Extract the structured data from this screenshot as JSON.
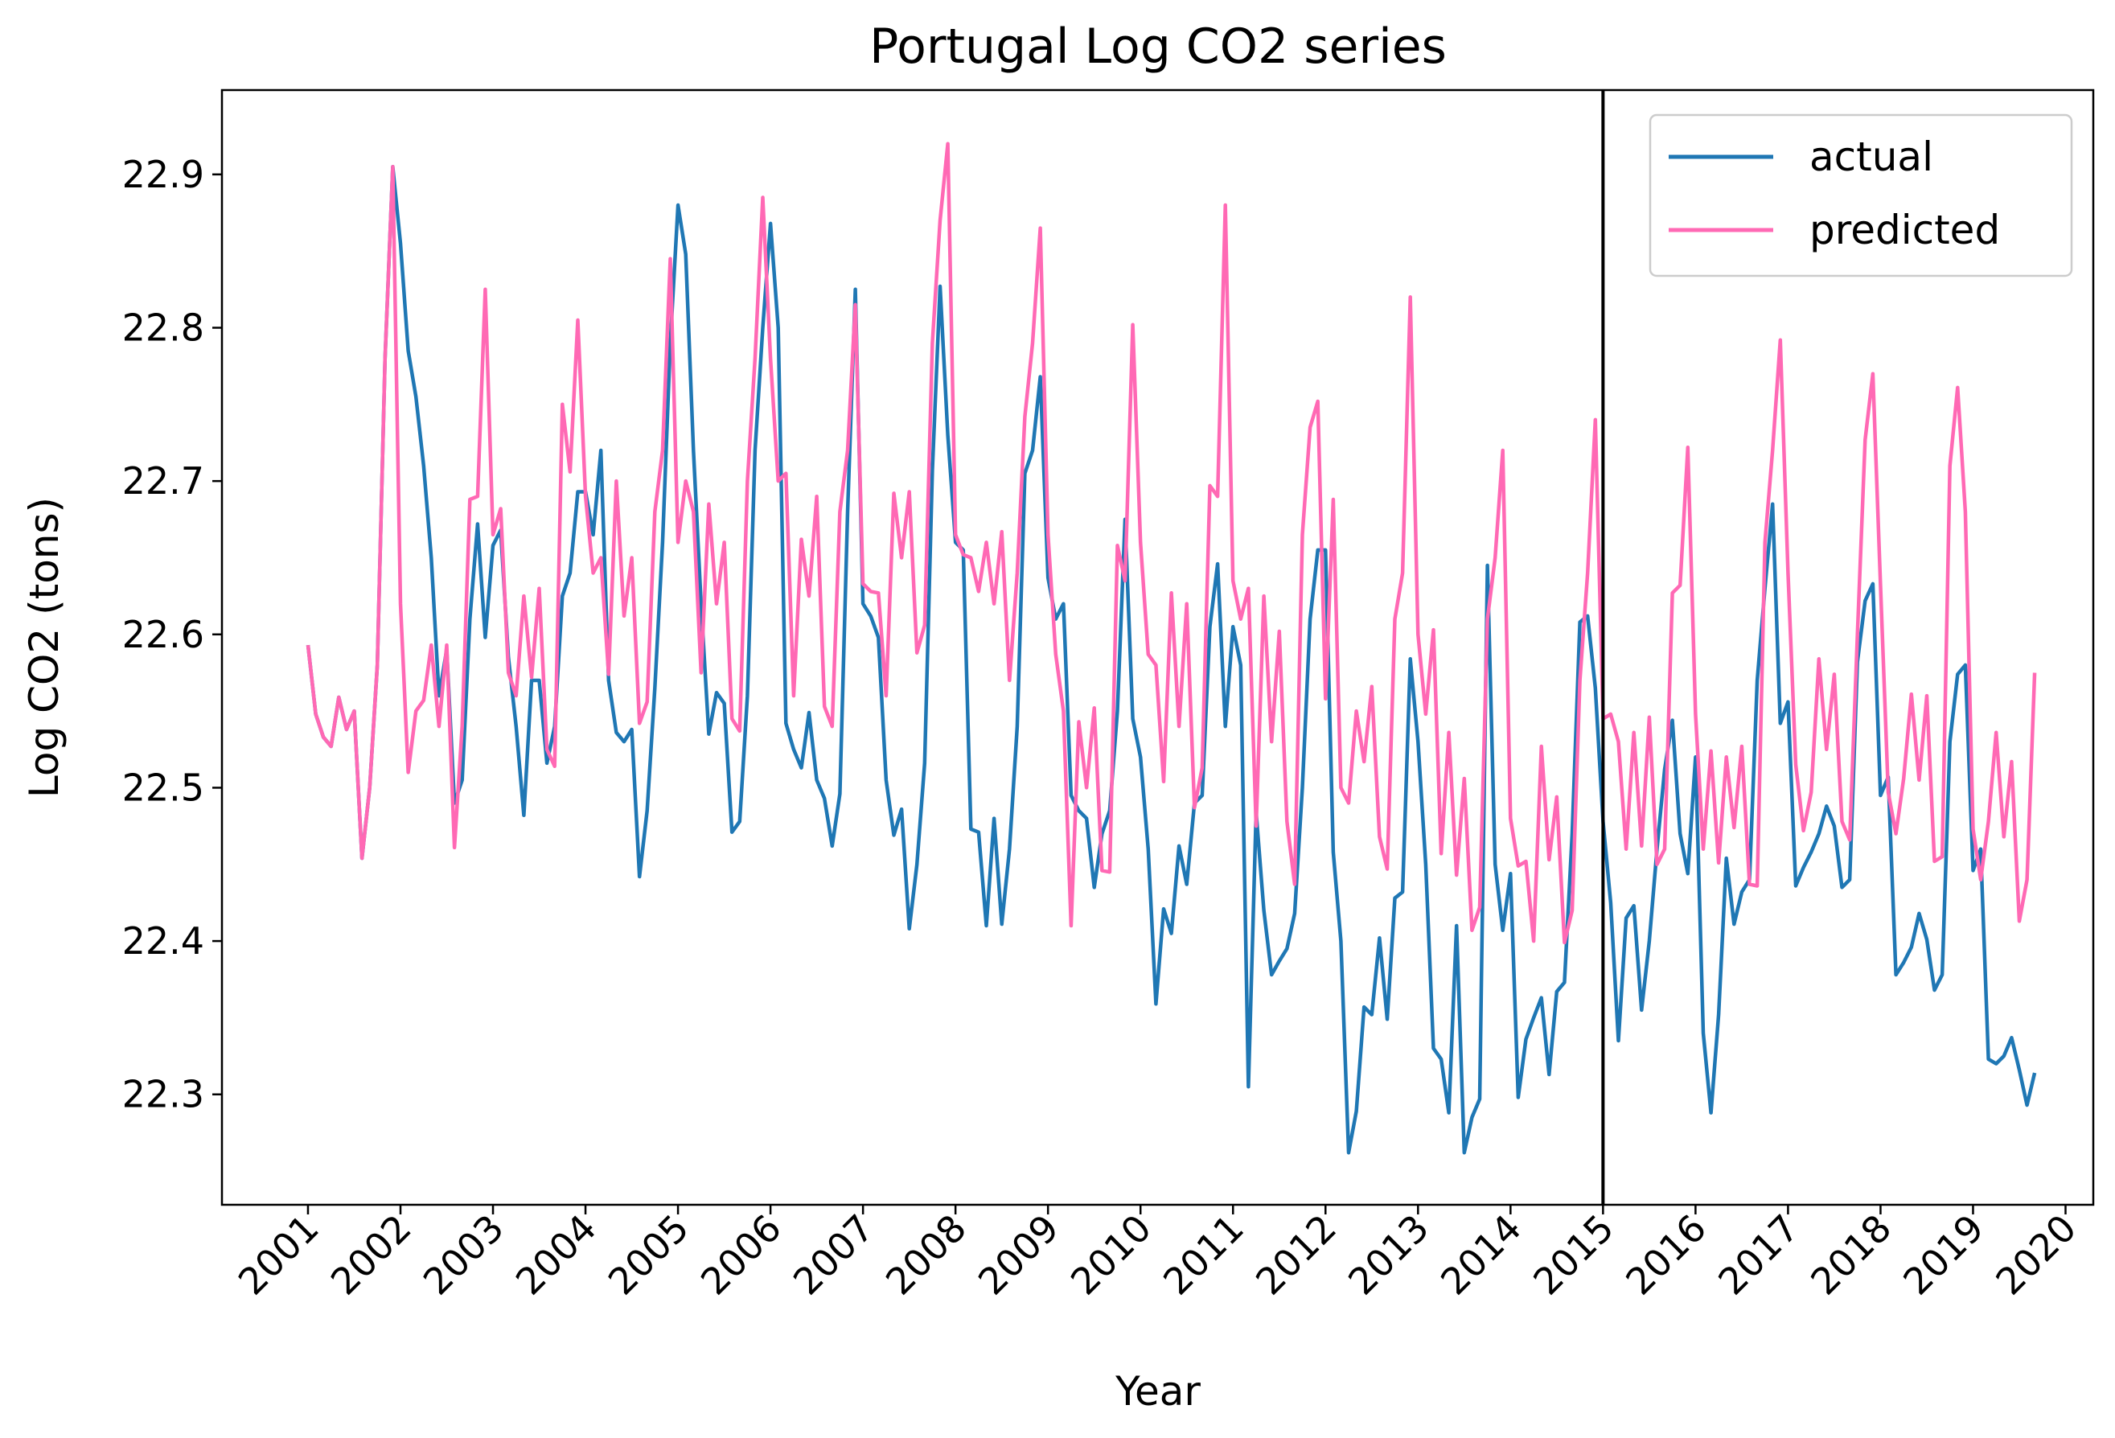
{
  "chart_data": {
    "type": "line",
    "title": "Portugal Log CO2 series",
    "xlabel": "Year",
    "ylabel": "Log CO2 (tons)",
    "xlim": [
      2000.07,
      2020.3
    ],
    "ylim": [
      22.228,
      22.955
    ],
    "x_ticks": [
      "2001",
      "2002",
      "2003",
      "2004",
      "2005",
      "2006",
      "2007",
      "2008",
      "2009",
      "2010",
      "2011",
      "2012",
      "2013",
      "2014",
      "2015",
      "2016",
      "2017",
      "2018",
      "2019",
      "2020"
    ],
    "y_ticks": [
      "22.3",
      "22.4",
      "22.5",
      "22.6",
      "22.7",
      "22.8",
      "22.9"
    ],
    "grid": false,
    "legend_position": "top-right",
    "vertical_line_x": 2015,
    "x_start": 2001.0,
    "x_step": 0.0833333,
    "series": [
      {
        "name": "actual",
        "color": "#1f77b4",
        "values": [
          22.593,
          22.548,
          22.533,
          22.527,
          22.559,
          22.538,
          22.55,
          22.454,
          22.5,
          22.58,
          22.78,
          22.905,
          22.855,
          22.785,
          22.755,
          22.71,
          22.65,
          22.56,
          22.59,
          22.49,
          22.505,
          22.61,
          22.672,
          22.598,
          22.658,
          22.668,
          22.585,
          22.54,
          22.482,
          22.57,
          22.57,
          22.516,
          22.54,
          22.625,
          22.64,
          22.693,
          22.693,
          22.665,
          22.72,
          22.57,
          22.536,
          22.53,
          22.538,
          22.442,
          22.485,
          22.565,
          22.66,
          22.79,
          22.88,
          22.848,
          22.72,
          22.62,
          22.535,
          22.562,
          22.555,
          22.471,
          22.478,
          22.56,
          22.72,
          22.8,
          22.868,
          22.8,
          22.542,
          22.525,
          22.513,
          22.549,
          22.505,
          22.493,
          22.462,
          22.496,
          22.68,
          22.825,
          22.62,
          22.612,
          22.598,
          22.505,
          22.469,
          22.486,
          22.408,
          22.45,
          22.516,
          22.707,
          22.827,
          22.73,
          22.66,
          22.655,
          22.473,
          22.471,
          22.41,
          22.48,
          22.411,
          22.46,
          22.54,
          22.705,
          22.72,
          22.768,
          22.637,
          22.61,
          22.62,
          22.495,
          22.485,
          22.48,
          22.435,
          22.47,
          22.485,
          22.55,
          22.675,
          22.545,
          22.52,
          22.46,
          22.359,
          22.421,
          22.405,
          22.462,
          22.437,
          22.49,
          22.495,
          22.605,
          22.646,
          22.54,
          22.605,
          22.58,
          22.305,
          22.484,
          22.42,
          22.378,
          22.387,
          22.395,
          22.418,
          22.5,
          22.61,
          22.655,
          22.655,
          22.458,
          22.4,
          22.262,
          22.289,
          22.357,
          22.352,
          22.402,
          22.349,
          22.428,
          22.432,
          22.584,
          22.53,
          22.45,
          22.33,
          22.323,
          22.288,
          22.41,
          22.262,
          22.285,
          22.297,
          22.645,
          22.45,
          22.407,
          22.444,
          22.298,
          22.336,
          22.35,
          22.363,
          22.313,
          22.367,
          22.373,
          22.47,
          22.608,
          22.612,
          22.565,
          22.478,
          22.425,
          22.335,
          22.415,
          22.423,
          22.355,
          22.4,
          22.46,
          22.512,
          22.544,
          22.47,
          22.444,
          22.52,
          22.34,
          22.288,
          22.352,
          22.454,
          22.411,
          22.432,
          22.44,
          22.57,
          22.63,
          22.685,
          22.542,
          22.556,
          22.436,
          22.448,
          22.458,
          22.47,
          22.488,
          22.475,
          22.435,
          22.44,
          22.582,
          22.622,
          22.633,
          22.495,
          22.507,
          22.378,
          22.386,
          22.396,
          22.418,
          22.401,
          22.368,
          22.378,
          22.53,
          22.574,
          22.58,
          22.446,
          22.46,
          22.323,
          22.32,
          22.325,
          22.337,
          22.316,
          22.293,
          22.314
        ]
      },
      {
        "name": "predicted",
        "color": "#ff69b4",
        "values": [
          22.593,
          22.548,
          22.533,
          22.527,
          22.559,
          22.538,
          22.55,
          22.454,
          22.5,
          22.58,
          22.78,
          22.905,
          22.62,
          22.51,
          22.55,
          22.557,
          22.593,
          22.54,
          22.593,
          22.461,
          22.54,
          22.688,
          22.69,
          22.825,
          22.665,
          22.682,
          22.575,
          22.56,
          22.625,
          22.572,
          22.63,
          22.525,
          22.514,
          22.75,
          22.706,
          22.805,
          22.69,
          22.64,
          22.65,
          22.574,
          22.7,
          22.612,
          22.65,
          22.542,
          22.556,
          22.68,
          22.72,
          22.845,
          22.66,
          22.7,
          22.68,
          22.575,
          22.685,
          22.62,
          22.66,
          22.545,
          22.537,
          22.7,
          22.78,
          22.885,
          22.78,
          22.7,
          22.705,
          22.56,
          22.662,
          22.625,
          22.69,
          22.553,
          22.54,
          22.68,
          22.72,
          22.815,
          22.633,
          22.628,
          22.627,
          22.56,
          22.692,
          22.65,
          22.693,
          22.588,
          22.606,
          22.79,
          22.87,
          22.92,
          22.665,
          22.652,
          22.65,
          22.628,
          22.66,
          22.62,
          22.667,
          22.57,
          22.64,
          22.742,
          22.79,
          22.865,
          22.665,
          22.587,
          22.55,
          22.41,
          22.543,
          22.5,
          22.552,
          22.446,
          22.445,
          22.658,
          22.635,
          22.802,
          22.66,
          22.587,
          22.58,
          22.504,
          22.627,
          22.54,
          22.62,
          22.487,
          22.513,
          22.697,
          22.69,
          22.88,
          22.635,
          22.61,
          22.63,
          22.475,
          22.625,
          22.53,
          22.602,
          22.478,
          22.437,
          22.665,
          22.735,
          22.752,
          22.558,
          22.688,
          22.5,
          22.49,
          22.55,
          22.517,
          22.566,
          22.468,
          22.447,
          22.61,
          22.64,
          22.82,
          22.6,
          22.548,
          22.603,
          22.457,
          22.536,
          22.443,
          22.506,
          22.407,
          22.422,
          22.61,
          22.65,
          22.72,
          22.48,
          22.449,
          22.452,
          22.4,
          22.527,
          22.453,
          22.494,
          22.399,
          22.42,
          22.57,
          22.64,
          22.74,
          22.545,
          22.548,
          22.53,
          22.46,
          22.536,
          22.462,
          22.546,
          22.45,
          22.46,
          22.627,
          22.632,
          22.722,
          22.548,
          22.46,
          22.524,
          22.451,
          22.52,
          22.474,
          22.527,
          22.437,
          22.436,
          22.66,
          22.72,
          22.792,
          22.64,
          22.515,
          22.472,
          22.497,
          22.584,
          22.525,
          22.574,
          22.478,
          22.466,
          22.6,
          22.727,
          22.77,
          22.632,
          22.497,
          22.47,
          22.506,
          22.561,
          22.505,
          22.56,
          22.452,
          22.455,
          22.71,
          22.761,
          22.68,
          22.473,
          22.44,
          22.478,
          22.536,
          22.468,
          22.517,
          22.413,
          22.44,
          22.575
        ]
      }
    ]
  }
}
